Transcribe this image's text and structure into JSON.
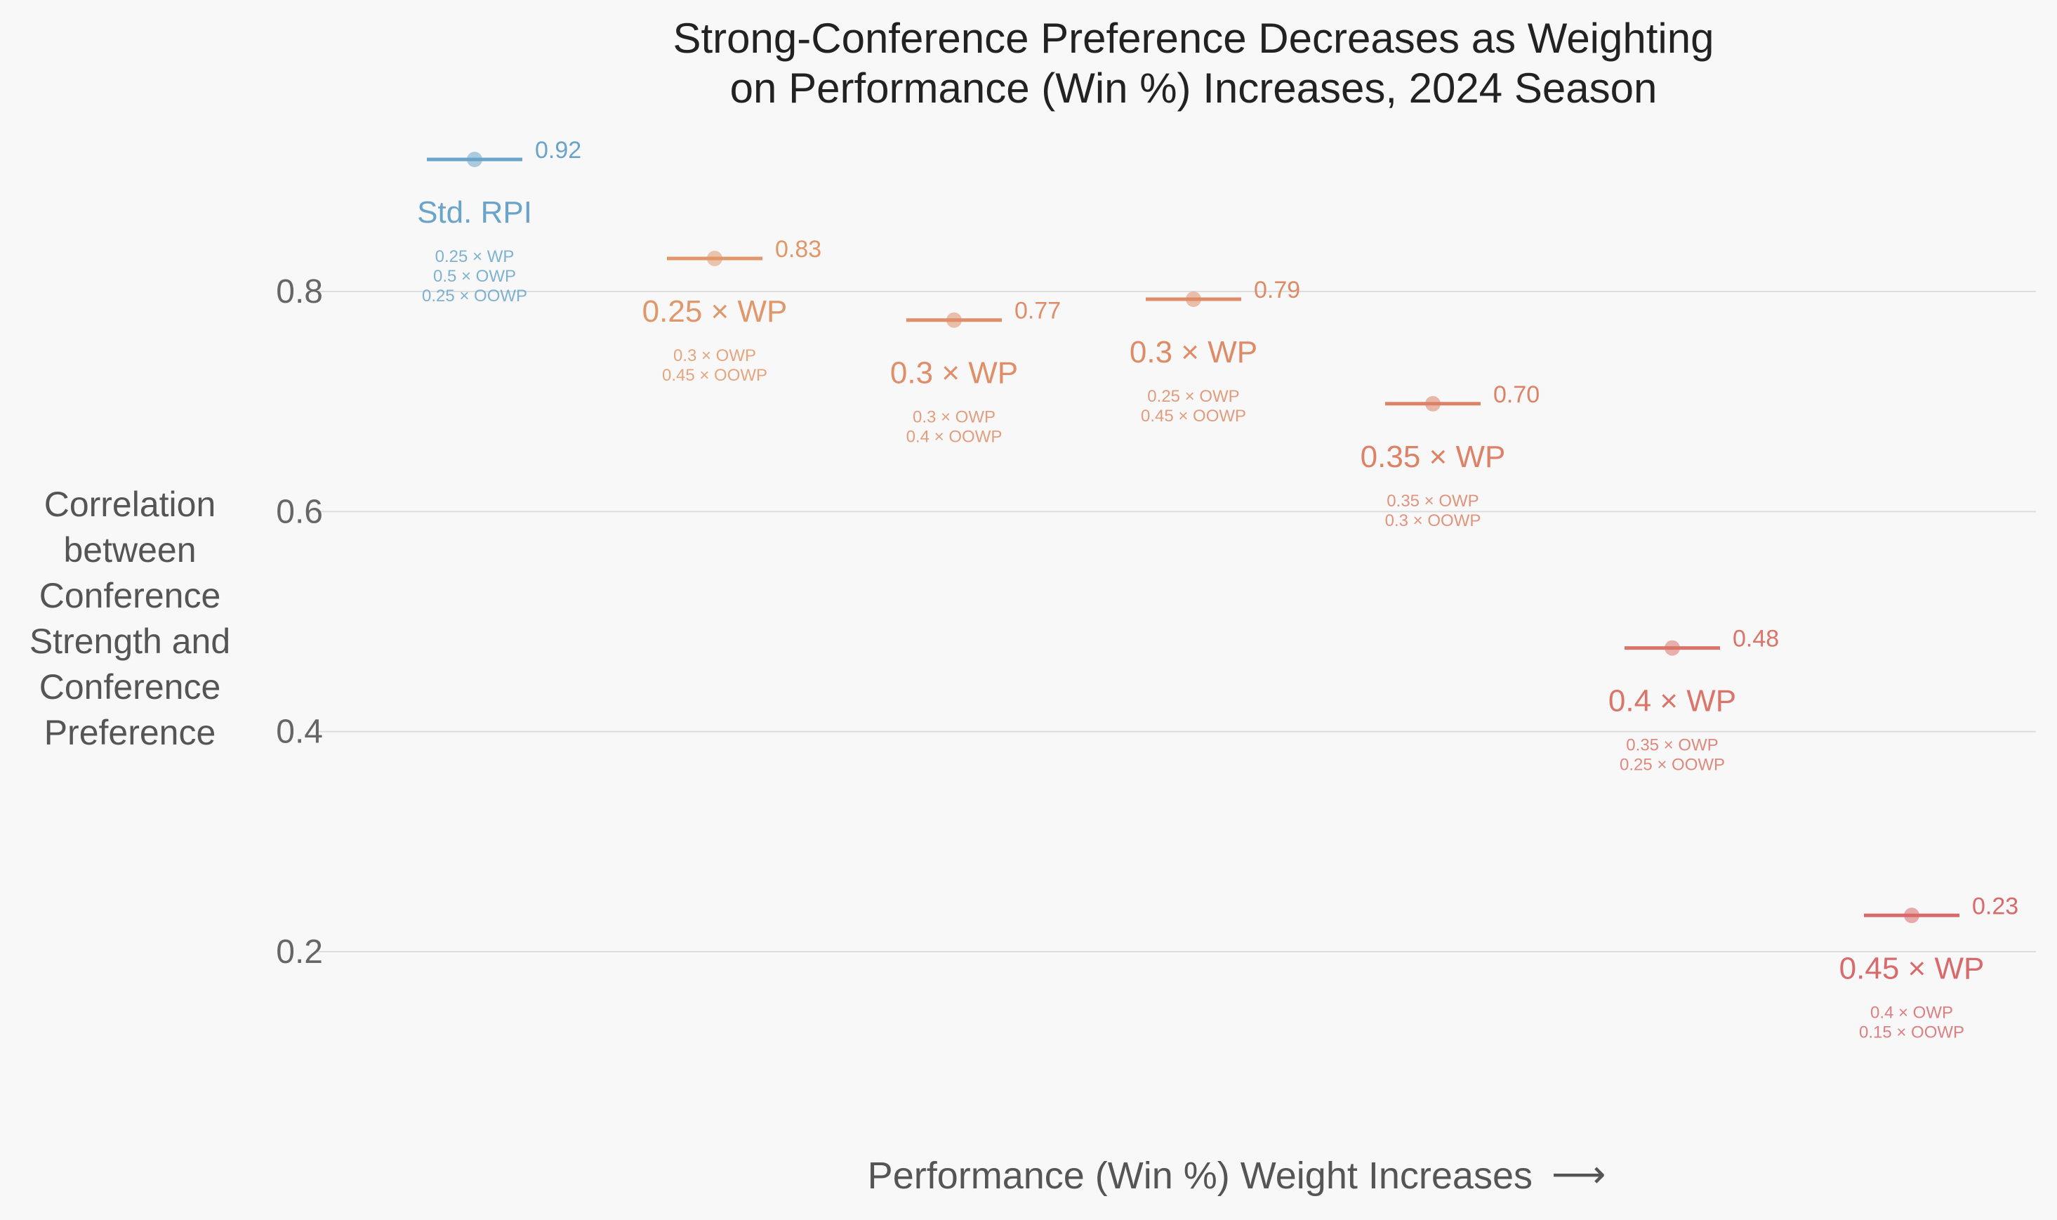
{
  "chart_data": {
    "type": "scatter",
    "title": "Strong-Conference Preference Decreases as Weighting on Performance (Win %) Increases, 2024 Season",
    "title_lines": [
      "Strong-Conference Preference Decreases as Weighting",
      "on Performance (Win %) Increases, 2024 Season"
    ],
    "xlabel": "Performance (Win %) Weight Increases",
    "xlabel_arrow": "⟶",
    "ylabel": "Correlation between Conference Strength and Conference Preference",
    "ylabel_lines": [
      "Correlation",
      "between",
      "Conference",
      "Strength and",
      "Conference",
      "Preference"
    ],
    "ylim": [
      0.08,
      0.98
    ],
    "yticks": [
      0.2,
      0.4,
      0.6,
      0.8
    ],
    "ytick_labels": [
      "0.2",
      "0.4",
      "0.6",
      "0.8"
    ],
    "grid": true,
    "points": [
      {
        "label": "Std. RPI",
        "sublabels": [
          "0.25 × WP",
          "0.5 × OWP",
          "0.25 × OOWP"
        ],
        "value": 0.92,
        "value_label": "0.92",
        "color": "#6aa4c9"
      },
      {
        "label": "0.25 × WP",
        "sublabels": [
          "0.3 × OWP",
          "0.45 × OOWP"
        ],
        "value": 0.83,
        "value_label": "0.83",
        "color": "#e0976a"
      },
      {
        "label": "0.3 × WP",
        "sublabels": [
          "0.3 × OWP",
          "0.4 × OOWP"
        ],
        "value": 0.774,
        "value_label": "0.77",
        "color": "#de8e68"
      },
      {
        "label": "0.3 × WP",
        "sublabels": [
          "0.25 × OWP",
          "0.45 × OOWP"
        ],
        "value": 0.793,
        "value_label": "0.79",
        "color": "#de8c67"
      },
      {
        "label": "0.35 × WP",
        "sublabels": [
          "0.35 × OWP",
          "0.3 × OOWP"
        ],
        "value": 0.698,
        "value_label": "0.70",
        "color": "#dd8266"
      },
      {
        "label": "0.4 × WP",
        "sublabels": [
          "0.35 × OWP",
          "0.25 × OOWP"
        ],
        "value": 0.476,
        "value_label": "0.48",
        "color": "#db7469"
      },
      {
        "label": "0.45 × WP",
        "sublabels": [
          "0.4 × OWP",
          "0.15 × OOWP"
        ],
        "value": 0.233,
        "value_label": "0.23",
        "color": "#d96a6c"
      }
    ]
  }
}
